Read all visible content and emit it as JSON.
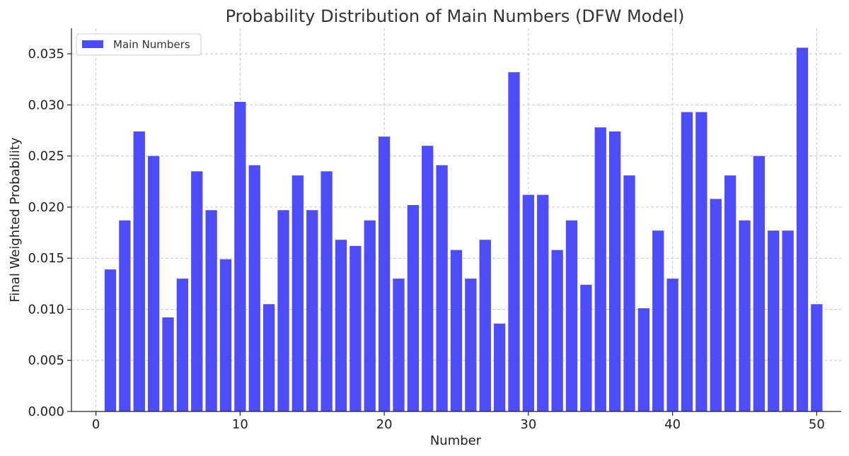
{
  "chart_data": {
    "type": "bar",
    "title": "Probability Distribution of Main Numbers (DFW Model)",
    "xlabel": "Number",
    "ylabel": "Final Weighted Probability",
    "xlim": [
      -1.7,
      51.7
    ],
    "ylim": [
      0,
      0.0375
    ],
    "xticks": [
      0,
      10,
      20,
      30,
      40,
      50
    ],
    "yticks": [
      0.0,
      0.005,
      0.01,
      0.015,
      0.02,
      0.025,
      0.03,
      0.035
    ],
    "ytick_labels": [
      "0.000",
      "0.005",
      "0.010",
      "0.015",
      "0.020",
      "0.025",
      "0.030",
      "0.035"
    ],
    "grid": true,
    "legend": "top-left",
    "color": "#4d4dfb",
    "series": [
      {
        "name": "Main Numbers",
        "x": [
          1,
          2,
          3,
          4,
          5,
          6,
          7,
          8,
          9,
          10,
          11,
          12,
          13,
          14,
          15,
          16,
          17,
          18,
          19,
          20,
          21,
          22,
          23,
          24,
          25,
          26,
          27,
          28,
          29,
          30,
          31,
          32,
          33,
          34,
          35,
          36,
          37,
          38,
          39,
          40,
          41,
          42,
          43,
          44,
          45,
          46,
          47,
          48,
          49,
          50
        ],
        "values": [
          0.0139,
          0.0187,
          0.0274,
          0.025,
          0.0092,
          0.013,
          0.0235,
          0.0197,
          0.0149,
          0.0303,
          0.0241,
          0.0105,
          0.0197,
          0.0231,
          0.0197,
          0.0235,
          0.0168,
          0.0162,
          0.0187,
          0.0269,
          0.013,
          0.0202,
          0.026,
          0.0241,
          0.0158,
          0.013,
          0.0168,
          0.0086,
          0.0332,
          0.0212,
          0.0212,
          0.0158,
          0.0187,
          0.0124,
          0.0278,
          0.0274,
          0.0231,
          0.0101,
          0.0177,
          0.013,
          0.0293,
          0.0293,
          0.0208,
          0.0231,
          0.0187,
          0.025,
          0.0177,
          0.0177,
          0.0356,
          0.0105
        ]
      }
    ]
  }
}
